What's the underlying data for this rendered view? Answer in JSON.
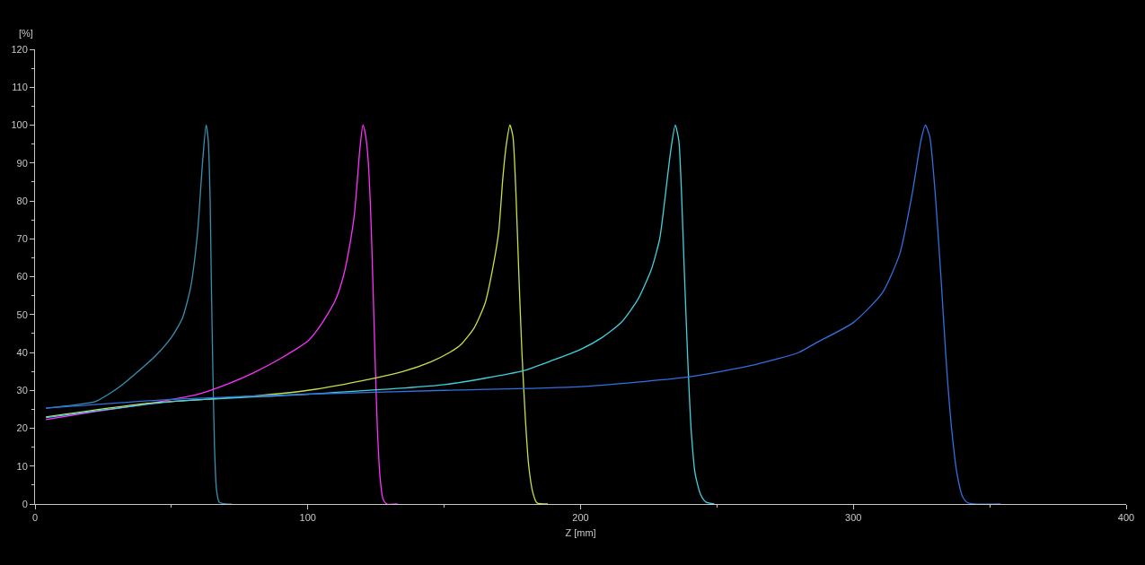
{
  "chart_data": {
    "type": "line",
    "xlabel": "Z [mm]",
    "ylabel": "[%]",
    "xlim": [
      0,
      400
    ],
    "xticks": [
      0,
      100,
      200,
      300,
      400
    ],
    "ylim": [
      0,
      120
    ],
    "yticks": [
      0,
      10,
      20,
      30,
      40,
      50,
      60,
      70,
      80,
      90,
      100,
      110,
      120
    ],
    "grid": false,
    "marker": "none",
    "line_style": "solid",
    "series": [
      {
        "color": "#3a8fb0",
        "x": [
          4,
          15,
          22,
          27,
          32,
          37,
          44,
          50,
          54,
          57,
          59.5,
          61.4,
          62.7,
          63.5,
          64.2,
          64.6,
          65.2,
          65.8,
          66.5,
          67.5,
          70,
          72
        ],
        "values": [
          25.3,
          26.2,
          27,
          29,
          31.5,
          34.5,
          39,
          44,
          49,
          57,
          71,
          90,
          100,
          96,
          80,
          60,
          35,
          15,
          4,
          0.5,
          0,
          0
        ]
      },
      {
        "color": "#ff30ff",
        "x": [
          4,
          20,
          40,
          60,
          70,
          80,
          90,
          100,
          105,
          110,
          113,
          115,
          117,
          118,
          119,
          120.2,
          121,
          122,
          123,
          123.8,
          124.6,
          125.5,
          126.5,
          127.5,
          129,
          133
        ],
        "values": [
          22.3,
          24.2,
          26.3,
          29,
          31.5,
          34.6,
          38.4,
          43,
          47.5,
          53.6,
          60,
          66.8,
          76,
          84,
          93,
          100,
          98,
          92,
          78,
          60,
          40,
          20,
          7,
          1.5,
          0,
          0
        ]
      },
      {
        "color": "#c8e048",
        "x": [
          4,
          40,
          80,
          100,
          123,
          135,
          145,
          152,
          156,
          161,
          165,
          168,
          170,
          171.5,
          172.8,
          174.1,
          175.2,
          176.3,
          177.4,
          178.5,
          179.8,
          181,
          182.5,
          184,
          188
        ],
        "values": [
          23,
          26.5,
          28.5,
          30,
          33,
          35,
          37.5,
          40,
          42,
          46.5,
          53,
          63,
          72,
          86,
          95,
          100,
          97,
          82,
          60,
          40,
          22,
          10,
          3,
          0.3,
          0
        ]
      },
      {
        "color": "#40d0e0",
        "x": [
          4,
          50,
          100,
          150,
          179,
          190,
          200,
          208,
          215,
          221,
          226,
          229,
          230.5,
          233,
          234.7,
          236,
          237,
          238.1,
          239.3,
          240.5,
          242,
          244,
          246,
          249
        ],
        "values": [
          22.8,
          27,
          29,
          31.5,
          35.2,
          38,
          40.8,
          44,
          48,
          54,
          62,
          70,
          78,
          93,
          100,
          96,
          82,
          60,
          38,
          20,
          8,
          2.5,
          0.5,
          0
        ]
      },
      {
        "color": "#3070e0",
        "x": [
          4,
          50,
          100,
          150,
          200,
          240,
          264,
          280,
          286,
          300,
          310.6,
          317,
          321.6,
          324.8,
          326.4,
          328,
          330,
          332.1,
          334,
          336,
          338,
          340,
          342,
          354
        ],
        "values": [
          25.3,
          27.6,
          29,
          30,
          31,
          33.6,
          36.8,
          40,
          42.4,
          47.9,
          55.7,
          66,
          82,
          96,
          100,
          97,
          82,
          60,
          38,
          20,
          8,
          2,
          0.3,
          0
        ]
      }
    ]
  }
}
